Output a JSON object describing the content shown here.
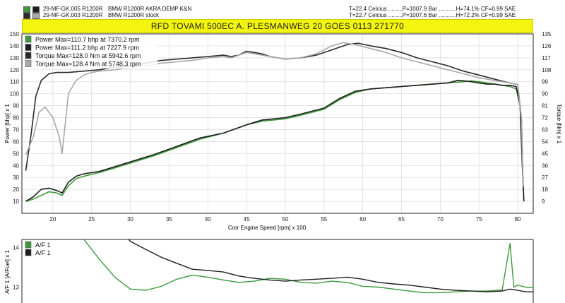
{
  "header": {
    "runs": [
      {
        "id_text": "29-MF-GK.005 R1200R",
        "description": "BMW R1200R AKRA DEMP K&N",
        "conditions": "T=22.4 Celcius .........P=1007.9 Bar ...........H=74.1% CF=0.99 SAE",
        "swatch_colors": [
          "#3a9a3a",
          "#1e1e1e"
        ]
      },
      {
        "id_text": "29-MF-GK.003 R1200R",
        "description": "BMW R1200R stock",
        "conditions": "T=22.7 Celcius .........P=1007.6 Bar ...........H=72.2% CF=0.99 SAE",
        "swatch_colors": [
          "#2a2a2a",
          "#a8a8a8"
        ]
      }
    ],
    "banner": "RFD TOVAMI 500EC  A. PLESMANWEG 20 GOES 0113 271770"
  },
  "chart_data": [
    {
      "type": "line",
      "xlabel": "Corr Engine Speed [rpm] x 100",
      "ylabel_left": "Power [bhp] x 1",
      "ylabel_right": "Torque [Nm] x 1",
      "xlim": [
        16,
        82
      ],
      "ylim_left": [
        0,
        150
      ],
      "ylim_right": [
        0,
        135
      ],
      "x_ticks": [
        20,
        25,
        30,
        35,
        40,
        45,
        50,
        55,
        60,
        65,
        70,
        75,
        80
      ],
      "y_ticks_left": [
        10,
        20,
        30,
        40,
        50,
        60,
        70,
        80,
        90,
        100,
        110,
        120,
        130,
        140,
        150
      ],
      "y_ticks_right": [
        9,
        18,
        27,
        36,
        45,
        54,
        63,
        72,
        81,
        90,
        99,
        108,
        117,
        126,
        135
      ],
      "grid": true,
      "legend_position": "top-left",
      "series": [
        {
          "name": "Power  Max=110.7 bhp at 7370.2 rpm",
          "axis": "left",
          "color": "#3a9a3a",
          "x": [
            16.5,
            17.5,
            18.5,
            19.5,
            20.5,
            21.2,
            22,
            23,
            24,
            26,
            28,
            30,
            33,
            36,
            39,
            42,
            45,
            47,
            50,
            52,
            55,
            57,
            59,
            61,
            63,
            65,
            67,
            69,
            71,
            73,
            74,
            75,
            76,
            77,
            78,
            79,
            79.8,
            80.3,
            80.6,
            80.8
          ],
          "y": [
            10,
            12,
            15,
            18,
            17,
            15,
            23,
            29,
            31,
            34,
            38,
            42,
            48,
            55,
            62,
            67,
            74,
            77,
            79,
            82,
            87,
            95,
            101,
            104,
            105,
            106,
            107,
            108,
            109,
            110,
            110.7,
            110,
            109,
            108,
            107,
            106,
            104,
            90,
            40,
            10
          ]
        },
        {
          "name": "Power  Max=111.2 bhp at 7227.9 rpm",
          "axis": "left",
          "color": "#1e1e1e",
          "x": [
            16.5,
            17.5,
            18.5,
            19.5,
            20.5,
            21.2,
            22,
            23,
            24,
            26,
            28,
            30,
            33,
            36,
            39,
            42,
            45,
            47,
            50,
            52,
            55,
            57,
            59,
            61,
            63,
            65,
            67,
            69,
            71,
            72.3,
            74,
            75,
            76,
            77,
            78,
            79,
            79.8,
            80.3,
            80.6,
            80.8
          ],
          "y": [
            10,
            14,
            20,
            21,
            19,
            17,
            26,
            31,
            33,
            35,
            39,
            43,
            49,
            56,
            63,
            67,
            74,
            78,
            80,
            83,
            88,
            96,
            102,
            104,
            105,
            106,
            107,
            108,
            109,
            111.2,
            110,
            109,
            108,
            108,
            107,
            107,
            106,
            90,
            40,
            10
          ]
        },
        {
          "name": "Torque  Max=128.0 Nm at 5942.6 rpm",
          "axis": "right",
          "color": "#2a2a2a",
          "x": [
            16.5,
            17.2,
            17.8,
            18.5,
            19.5,
            20.5,
            22,
            24,
            26,
            28,
            30,
            32,
            34,
            36,
            38,
            40,
            42,
            43,
            44,
            45,
            46,
            47,
            48,
            50,
            52,
            54,
            56,
            58,
            59.4,
            61,
            63,
            65,
            67,
            69,
            71,
            73,
            75,
            77,
            79,
            80,
            80.5,
            80.7
          ],
          "y": [
            32,
            60,
            88,
            100,
            105,
            106,
            106,
            107,
            108,
            110,
            111,
            113,
            115,
            116,
            117,
            118,
            119,
            118,
            119,
            122,
            121,
            120,
            118,
            116,
            117,
            119,
            123,
            127,
            128,
            126,
            124,
            121,
            117,
            114,
            111,
            107,
            104,
            101,
            98,
            97,
            70,
            20
          ]
        },
        {
          "name": "Torque  Max=128.4 Nm at 5748.3 rpm",
          "axis": "right",
          "color": "#a8a8a8",
          "x": [
            16.5,
            17.5,
            18.2,
            19,
            20,
            20.8,
            21.2,
            22,
            23,
            24,
            25,
            26,
            28,
            30,
            32,
            34,
            36,
            38,
            40,
            42,
            43,
            44,
            45,
            46,
            48,
            50,
            52,
            54,
            56,
            57.5,
            59,
            61,
            63,
            65,
            67,
            69,
            71,
            73,
            75,
            77,
            79,
            80,
            80.5,
            80.7
          ],
          "y": [
            44,
            58,
            76,
            80,
            72,
            58,
            45,
            90,
            100,
            104,
            106,
            107,
            108,
            110,
            111,
            113,
            114,
            115,
            117,
            118,
            117,
            119,
            121,
            120,
            118,
            116,
            117,
            120,
            126,
            128.4,
            127,
            124,
            121,
            117,
            114,
            111,
            108,
            105,
            102,
            100,
            98,
            97,
            70,
            20
          ]
        }
      ]
    },
    {
      "type": "line",
      "ylabel": "A/F 1 [A/Fuel] x 1",
      "xlim": [
        16,
        82
      ],
      "ylim": [
        12.6,
        14.2
      ],
      "y_ticks": [
        13,
        14
      ],
      "grid": false,
      "legend_position": "top-left",
      "series": [
        {
          "name": "A/F 1",
          "color": "#3a9a3a",
          "x": [
            22,
            24,
            26,
            28,
            30,
            32,
            34,
            36,
            38,
            40,
            42,
            44,
            46,
            48,
            50,
            52,
            54,
            56,
            58,
            60,
            62,
            64,
            66,
            68,
            70,
            72,
            74,
            76,
            78,
            79,
            79.5,
            80,
            81,
            82
          ],
          "y": [
            14.6,
            14.2,
            13.7,
            13.25,
            12.95,
            12.92,
            13.02,
            13.2,
            13.3,
            13.25,
            13.18,
            13.12,
            13.15,
            13.22,
            13.2,
            13.12,
            13.1,
            13.15,
            13.12,
            13.02,
            13.0,
            12.95,
            12.9,
            12.86,
            12.86,
            12.88,
            12.9,
            12.9,
            12.93,
            14.1,
            13.0,
            13.05,
            13.0,
            12.98
          ]
        },
        {
          "name": "A/F 1",
          "color": "#1e1e1e",
          "x": [
            28,
            30,
            32,
            34,
            36,
            38,
            40,
            42,
            44,
            46,
            48,
            50,
            52,
            54,
            56,
            58,
            60,
            62,
            64,
            66,
            68,
            70,
            72,
            74,
            76,
            78,
            79,
            80,
            81,
            82
          ],
          "y": [
            14.6,
            14.15,
            13.95,
            13.75,
            13.6,
            13.45,
            13.42,
            13.38,
            13.28,
            13.22,
            13.18,
            13.15,
            13.18,
            13.2,
            13.22,
            13.25,
            13.2,
            13.12,
            13.08,
            13.05,
            13.0,
            12.95,
            12.92,
            12.9,
            12.88,
            12.9,
            12.95,
            12.92,
            12.88,
            12.88
          ]
        }
      ]
    }
  ]
}
